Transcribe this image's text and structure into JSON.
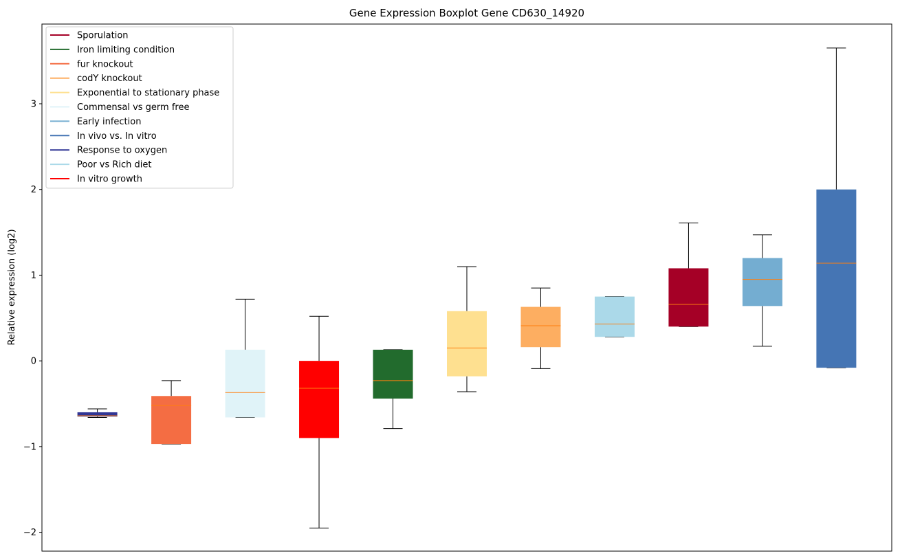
{
  "chart_data": {
    "type": "box",
    "title": "Gene Expression Boxplot Gene CD630_14920",
    "xlabel": "",
    "ylabel": "Relative expression (log2)",
    "ylim": [
      -2.22,
      3.93
    ],
    "yticks": [
      -2,
      -1,
      0,
      1,
      2,
      3
    ],
    "ytick_labels": [
      "−2",
      "−1",
      "0",
      "1",
      "2",
      "3"
    ],
    "median_color": "#ff7f0e",
    "legend_position": "top-left",
    "legend": [
      {
        "label": "Sporulation",
        "color": "#a50026"
      },
      {
        "label": "Iron limiting condition",
        "color": "#226b2d"
      },
      {
        "label": "fur knockout",
        "color": "#f46d43"
      },
      {
        "label": "codY knockout",
        "color": "#fdae61"
      },
      {
        "label": "Exponential to stationary phase",
        "color": "#fee090"
      },
      {
        "label": "Commensal vs germ free",
        "color": "#e0f3f8"
      },
      {
        "label": "Early infection",
        "color": "#74add1"
      },
      {
        "label": "In vivo vs. In vitro",
        "color": "#4575b4"
      },
      {
        "label": "Response to oxygen",
        "color": "#313695"
      },
      {
        "label": "Poor vs Rich diet",
        "color": "#abd9e9"
      },
      {
        "label": "In vitro growth",
        "color": "#ff0000"
      }
    ],
    "series": [
      {
        "name": "Response to oxygen",
        "color": "#313695",
        "whislo": -0.66,
        "q1": -0.65,
        "median": -0.64,
        "q3": -0.6,
        "whishi": -0.56
      },
      {
        "name": "fur knockout",
        "color": "#f46d43",
        "whislo": -0.97,
        "q1": -0.97,
        "median": -0.52,
        "q3": -0.41,
        "whishi": -0.23
      },
      {
        "name": "Commensal vs germ free",
        "color": "#e0f3f8",
        "whislo": -0.66,
        "q1": -0.66,
        "median": -0.37,
        "q3": 0.13,
        "whishi": 0.72
      },
      {
        "name": "In vitro growth",
        "color": "#ff0000",
        "whislo": -1.95,
        "q1": -0.9,
        "median": -0.32,
        "q3": 0.0,
        "whishi": 0.52
      },
      {
        "name": "Iron limiting condition",
        "color": "#226b2d",
        "whislo": -0.79,
        "q1": -0.44,
        "median": -0.23,
        "q3": 0.13,
        "whishi": 0.13
      },
      {
        "name": "Exponential to stationary phase",
        "color": "#fee090",
        "whislo": -0.36,
        "q1": -0.18,
        "median": 0.15,
        "q3": 0.58,
        "whishi": 1.1
      },
      {
        "name": "codY knockout",
        "color": "#fdae61",
        "whislo": -0.09,
        "q1": 0.16,
        "median": 0.41,
        "q3": 0.63,
        "whishi": 0.85
      },
      {
        "name": "Poor vs Rich diet",
        "color": "#abd9e9",
        "whislo": 0.28,
        "q1": 0.28,
        "median": 0.43,
        "q3": 0.75,
        "whishi": 0.75
      },
      {
        "name": "Sporulation",
        "color": "#a50026",
        "whislo": 0.4,
        "q1": 0.4,
        "median": 0.66,
        "q3": 1.08,
        "whishi": 1.61
      },
      {
        "name": "Early infection",
        "color": "#74add1",
        "whislo": 0.17,
        "q1": 0.64,
        "median": 0.95,
        "q3": 1.2,
        "whishi": 1.47
      },
      {
        "name": "In vivo vs. In vitro",
        "color": "#4575b4",
        "whislo": -0.08,
        "q1": -0.08,
        "median": 1.14,
        "q3": 2.0,
        "whishi": 3.65
      }
    ]
  }
}
